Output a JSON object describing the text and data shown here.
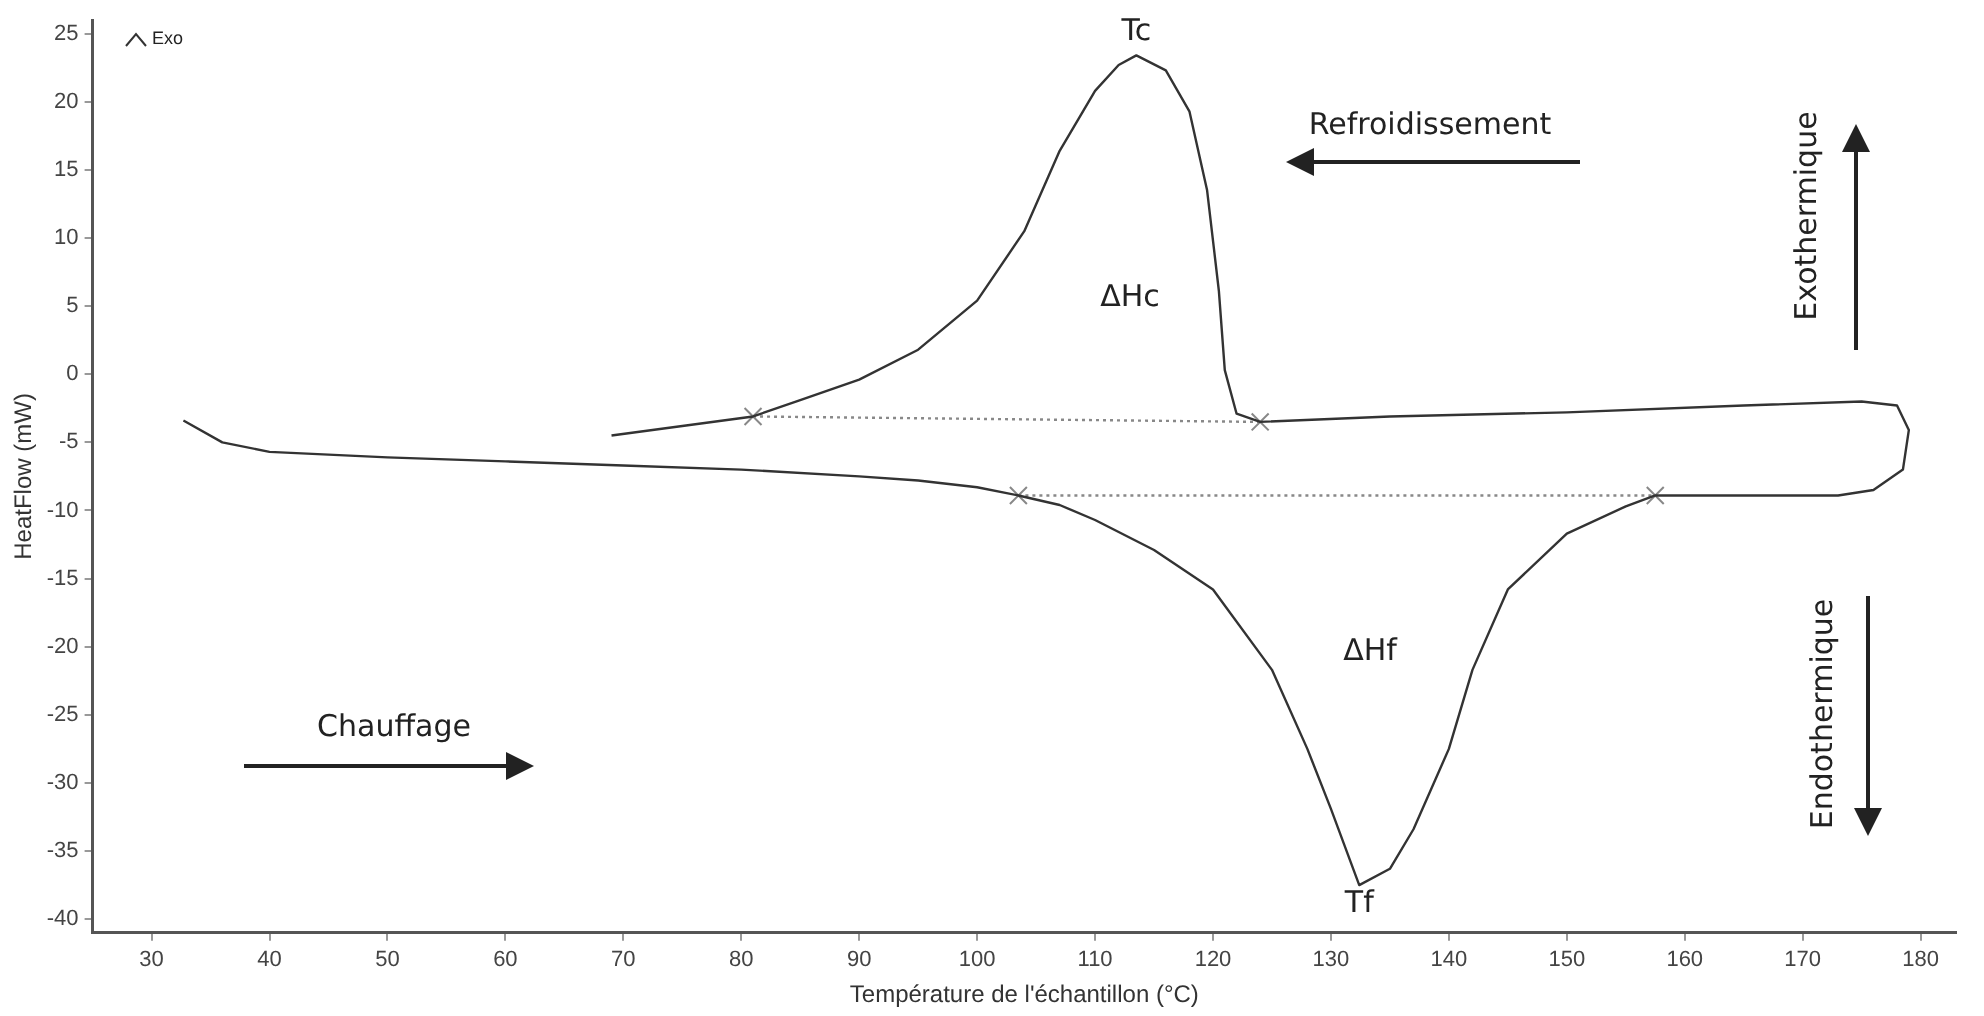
{
  "chart_data": {
    "type": "line",
    "xlabel": "Température de l'échantillon (°C)",
    "ylabel": "HeatFlow (mW)",
    "xlim": [
      25,
      183
    ],
    "xticks": [
      30,
      40,
      50,
      60,
      70,
      80,
      90,
      100,
      110,
      120,
      130,
      140,
      150,
      160,
      170,
      180
    ],
    "ylim": [
      -41,
      26
    ],
    "yticks": [
      -40,
      -35,
      -30,
      -25,
      -20,
      -15,
      -10,
      -5,
      0,
      5,
      10,
      15,
      20,
      25
    ],
    "grid": false,
    "legend": false,
    "series": [
      {
        "color": "#333333",
        "marker": "none",
        "line_style": "solid",
        "x": [
          32.7,
          36,
          40,
          50,
          60,
          70,
          80,
          90,
          95,
          100,
          103.5,
          107,
          110,
          115,
          120,
          125,
          128,
          130,
          132.4,
          135,
          137,
          140,
          142,
          145,
          150,
          155,
          157.5,
          165,
          173,
          176,
          178.5,
          179,
          178,
          175,
          165,
          150,
          135,
          124,
          122,
          121,
          120.5,
          119.5,
          118,
          116,
          113.5,
          112,
          110,
          107,
          104,
          100,
          95,
          90,
          85,
          81,
          75,
          69
        ],
        "values": [
          -3.4,
          -5.0,
          -5.7,
          -6.1,
          -6.4,
          -6.7,
          -7.0,
          -7.5,
          -7.8,
          -8.3,
          -8.9,
          -9.6,
          -10.7,
          -12.9,
          -15.8,
          -21.7,
          -27.5,
          -31.9,
          -37.5,
          -36.3,
          -33.4,
          -27.5,
          -21.7,
          -15.8,
          -11.7,
          -9.7,
          -8.9,
          -8.9,
          -8.9,
          -8.5,
          -7.0,
          -4.1,
          -2.3,
          -2.0,
          -2.3,
          -2.8,
          -3.1,
          -3.5,
          -2.9,
          0.3,
          6.1,
          13.5,
          19.3,
          22.3,
          23.4,
          22.7,
          20.8,
          16.4,
          10.5,
          5.4,
          1.8,
          -0.4,
          -1.9,
          -3.1,
          -3.8,
          -4.5
        ]
      },
      {
        "color": "#888888",
        "marker": "cross",
        "line_style": "dotted",
        "x": [
          81,
          124
        ],
        "values": [
          -3.1,
          -3.5
        ]
      },
      {
        "color": "#888888",
        "marker": "cross",
        "line_style": "dotted",
        "x": [
          103.5,
          157.5
        ],
        "values": [
          -8.9,
          -8.9
        ]
      }
    ],
    "annotations": [
      {
        "text": "Tc",
        "x": 113.5,
        "y": 23.4
      },
      {
        "text": "Tf",
        "x": 132.4,
        "y": -37.5
      },
      "Exo",
      "Refroidissement",
      "Chauffage",
      "ΔHc",
      "ΔHf",
      "Exothermique",
      "Endothermique"
    ]
  }
}
